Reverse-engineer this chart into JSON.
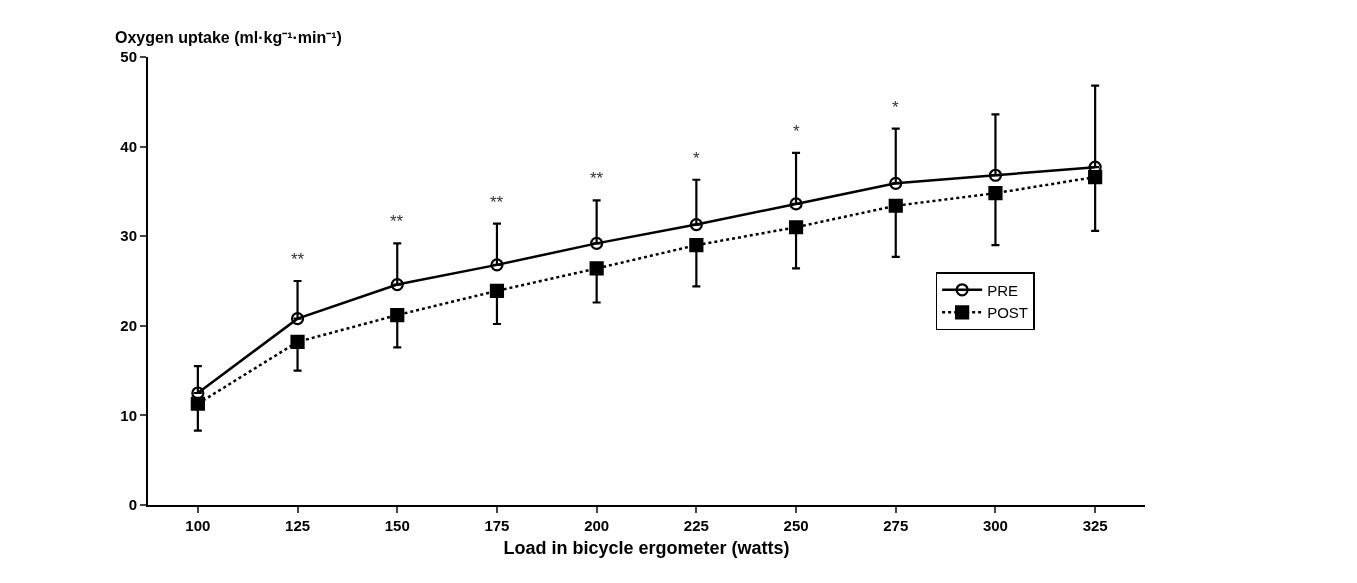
{
  "chart_data": {
    "type": "line",
    "ylabel": "Oxygen uptake (ml·kg⁻¹·min⁻¹)",
    "xlabel": "Load in bicycle ergometer (watts)",
    "categories": [
      "100",
      "125",
      "150",
      "175",
      "200",
      "225",
      "250",
      "275",
      "300",
      "325"
    ],
    "ylim": [
      0,
      50
    ],
    "yticks": [
      0,
      10,
      20,
      30,
      40,
      50
    ],
    "legend": "right",
    "series": [
      {
        "name": "PRE",
        "color": "#000000",
        "marker": "circle",
        "line_style": "solid",
        "values": [
          12.5,
          20.8,
          24.6,
          26.8,
          29.2,
          31.3,
          33.6,
          35.9,
          36.8,
          37.7
        ],
        "errors": [
          [
            12.5,
            15.5
          ],
          [
            20.8,
            25.0
          ],
          [
            24.6,
            29.2
          ],
          [
            26.8,
            31.4
          ],
          [
            29.2,
            34.0
          ],
          [
            31.3,
            36.3
          ],
          [
            33.6,
            39.3
          ],
          [
            35.9,
            42.0
          ],
          [
            36.8,
            43.6
          ],
          [
            37.7,
            46.8
          ]
        ]
      },
      {
        "name": "POST",
        "color": "#000000",
        "marker": "square",
        "line_style": "dotted",
        "values": [
          11.3,
          18.2,
          21.2,
          23.9,
          26.4,
          29.0,
          31.0,
          33.4,
          34.8,
          36.6
        ],
        "errors": [
          [
            8.3,
            11.3
          ],
          [
            15.0,
            18.2
          ],
          [
            17.6,
            21.2
          ],
          [
            20.2,
            23.9
          ],
          [
            22.6,
            26.4
          ],
          [
            24.4,
            29.0
          ],
          [
            26.4,
            31.0
          ],
          [
            27.7,
            33.4
          ],
          [
            29.0,
            34.8
          ],
          [
            30.6,
            36.6
          ]
        ]
      }
    ],
    "annotations": [
      "**",
      "**",
      "**",
      "**",
      "*",
      "*",
      "*"
    ]
  }
}
